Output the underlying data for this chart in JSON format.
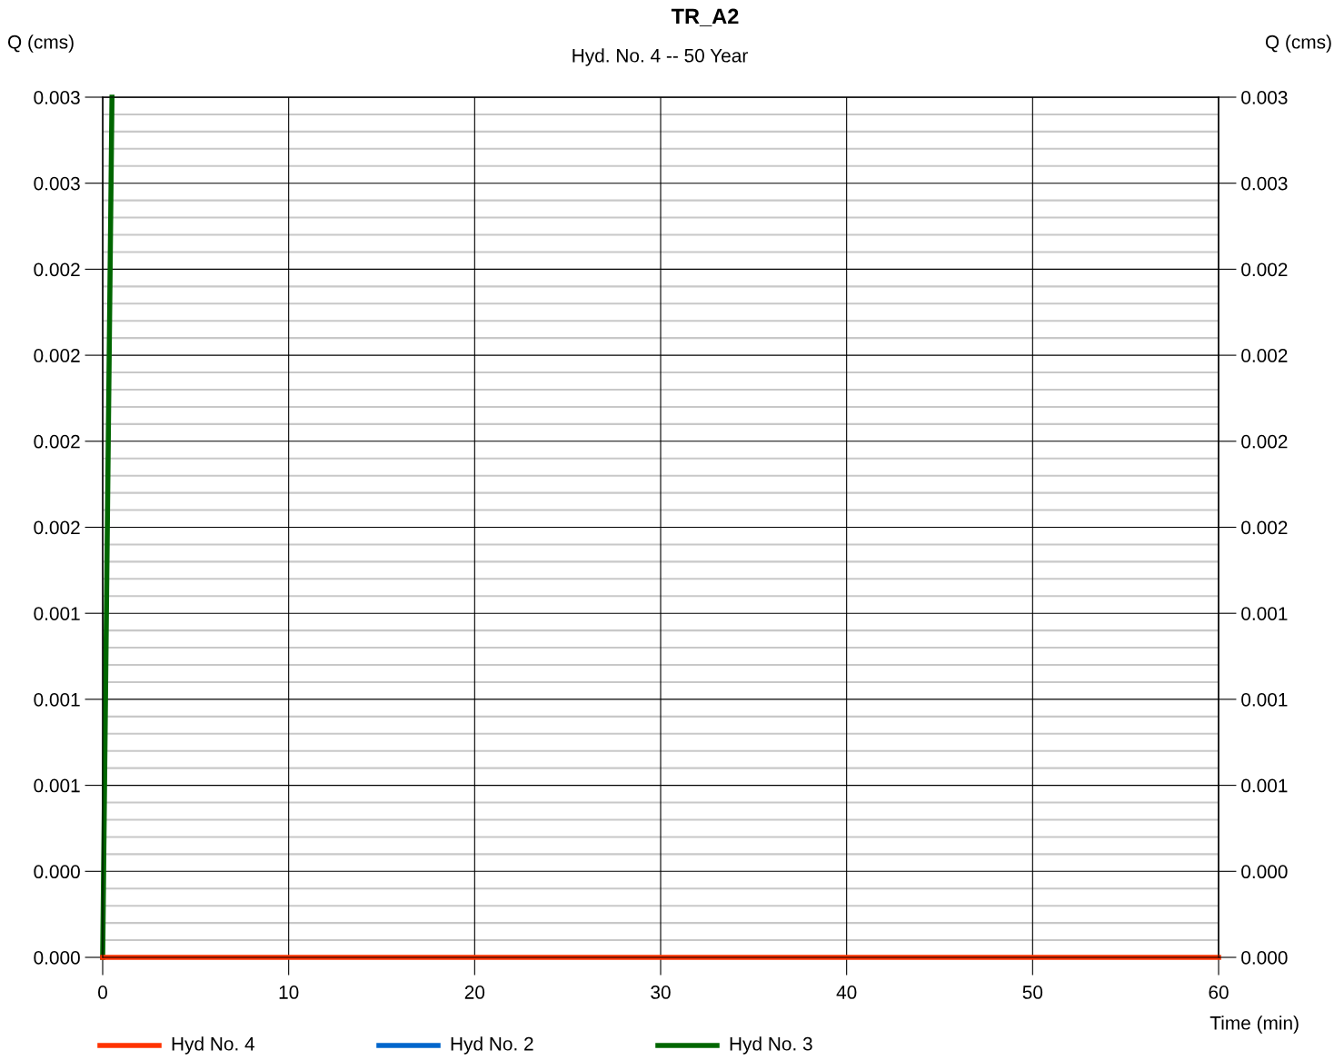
{
  "chart_data": {
    "type": "line",
    "title": "TR_A2",
    "subtitle": "Hyd. No. 4 -- 50 Year",
    "xlabel": "Time (min)",
    "ylabel": "Q (cms)",
    "y2label": "Q (cms)",
    "xlim": [
      0,
      60
    ],
    "xticks": [
      0,
      10,
      20,
      30,
      40,
      50,
      60
    ],
    "ylim": [
      0,
      0.003
    ],
    "yticks": [
      {
        "value": 0,
        "label": "0.000"
      },
      {
        "value": 0.0003,
        "label": "0.000"
      },
      {
        "value": 0.0006,
        "label": "0.001"
      },
      {
        "value": 0.0009,
        "label": "0.001"
      },
      {
        "value": 0.0012,
        "label": "0.001"
      },
      {
        "value": 0.0015,
        "label": "0.002"
      },
      {
        "value": 0.0018,
        "label": "0.002"
      },
      {
        "value": 0.0021,
        "label": "0.002"
      },
      {
        "value": 0.0024,
        "label": "0.002"
      },
      {
        "value": 0.0027,
        "label": "0.003"
      },
      {
        "value": 0.003,
        "label": "0.003"
      }
    ],
    "y2lim": [
      0,
      0.003
    ],
    "y2ticks": [
      {
        "value": 0,
        "label": "0.000"
      },
      {
        "value": 0.0003,
        "label": "0.000"
      },
      {
        "value": 0.0006,
        "label": "0.001"
      },
      {
        "value": 0.0009,
        "label": "0.001"
      },
      {
        "value": 0.0012,
        "label": "0.001"
      },
      {
        "value": 0.0015,
        "label": "0.002"
      },
      {
        "value": 0.0018,
        "label": "0.002"
      },
      {
        "value": 0.0021,
        "label": "0.002"
      },
      {
        "value": 0.0024,
        "label": "0.002"
      },
      {
        "value": 0.0027,
        "label": "0.003"
      },
      {
        "value": 0.003,
        "label": "0.003"
      }
    ],
    "grid": true,
    "legend": "bottom left",
    "line_style": "solid",
    "series": [
      {
        "name": "Hyd No. 4",
        "color": "#ff3300",
        "x": [
          0,
          60
        ],
        "values": [
          0,
          0
        ]
      },
      {
        "name": "Hyd No. 2",
        "color": "#0066cc"
      },
      {
        "name": "Hyd No. 3",
        "color": "#006600",
        "x": [
          0,
          0.5
        ],
        "values": [
          0,
          0.003
        ]
      }
    ]
  }
}
